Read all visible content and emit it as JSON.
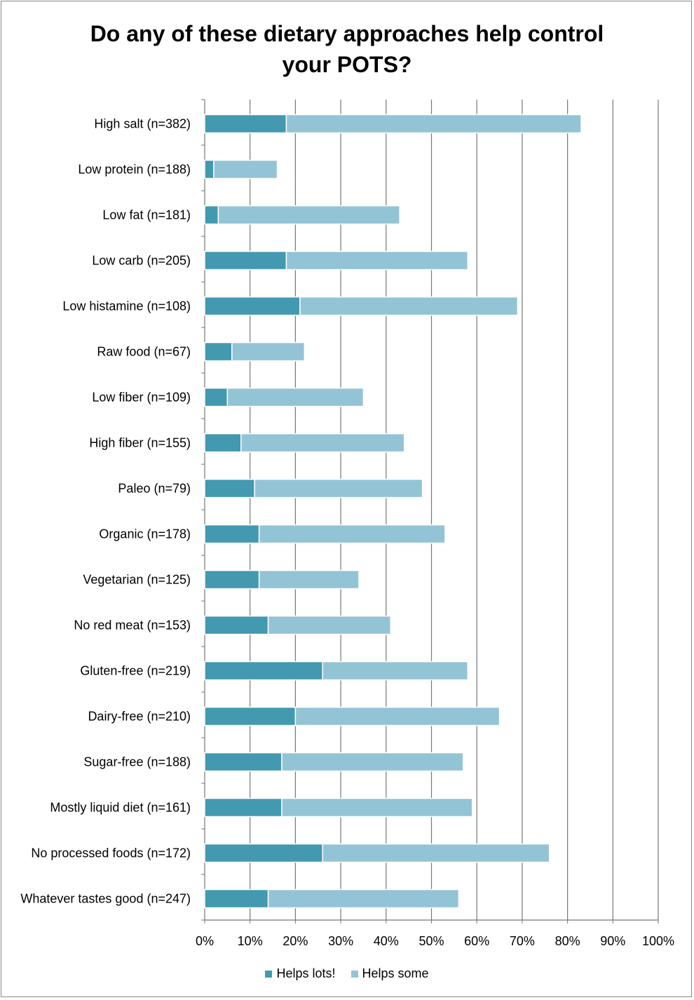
{
  "chart_data": {
    "type": "bar",
    "orientation": "horizontal",
    "stacked": true,
    "title_lines": [
      "Do any of these dietary approaches help control",
      "your POTS?"
    ],
    "categories": [
      "High salt (n=382)",
      "Low protein (n=188)",
      "Low fat (n=181)",
      "Low carb (n=205)",
      "Low histamine (n=108)",
      "Raw food (n=67)",
      "Low fiber (n=109)",
      "High fiber (n=155)",
      "Paleo (n=79)",
      "Organic (n=178)",
      "Vegetarian (n=125)",
      "No red meat (n=153)",
      "Gluten-free (n=219)",
      "Dairy-free (n=210)",
      "Sugar-free (n=188)",
      "Mostly liquid diet (n=161)",
      "No processed foods (n=172)",
      "Whatever tastes good (n=247)"
    ],
    "series": [
      {
        "name": "Helps lots!",
        "color": "#4299b0",
        "values": [
          18,
          2,
          3,
          18,
          21,
          6,
          5,
          8,
          11,
          12,
          12,
          14,
          26,
          20,
          17,
          17,
          26,
          14
        ]
      },
      {
        "name": "Helps some",
        "color": "#93c4d6",
        "values": [
          65,
          14,
          40,
          40,
          48,
          16,
          30,
          36,
          37,
          41,
          22,
          27,
          32,
          45,
          40,
          42,
          50,
          42
        ]
      }
    ],
    "xlim": [
      0,
      100
    ],
    "xticks": [
      "0%",
      "10%",
      "20%",
      "30%",
      "40%",
      "50%",
      "60%",
      "70%",
      "80%",
      "90%",
      "100%"
    ],
    "grid": true,
    "legend_position": "bottom"
  }
}
